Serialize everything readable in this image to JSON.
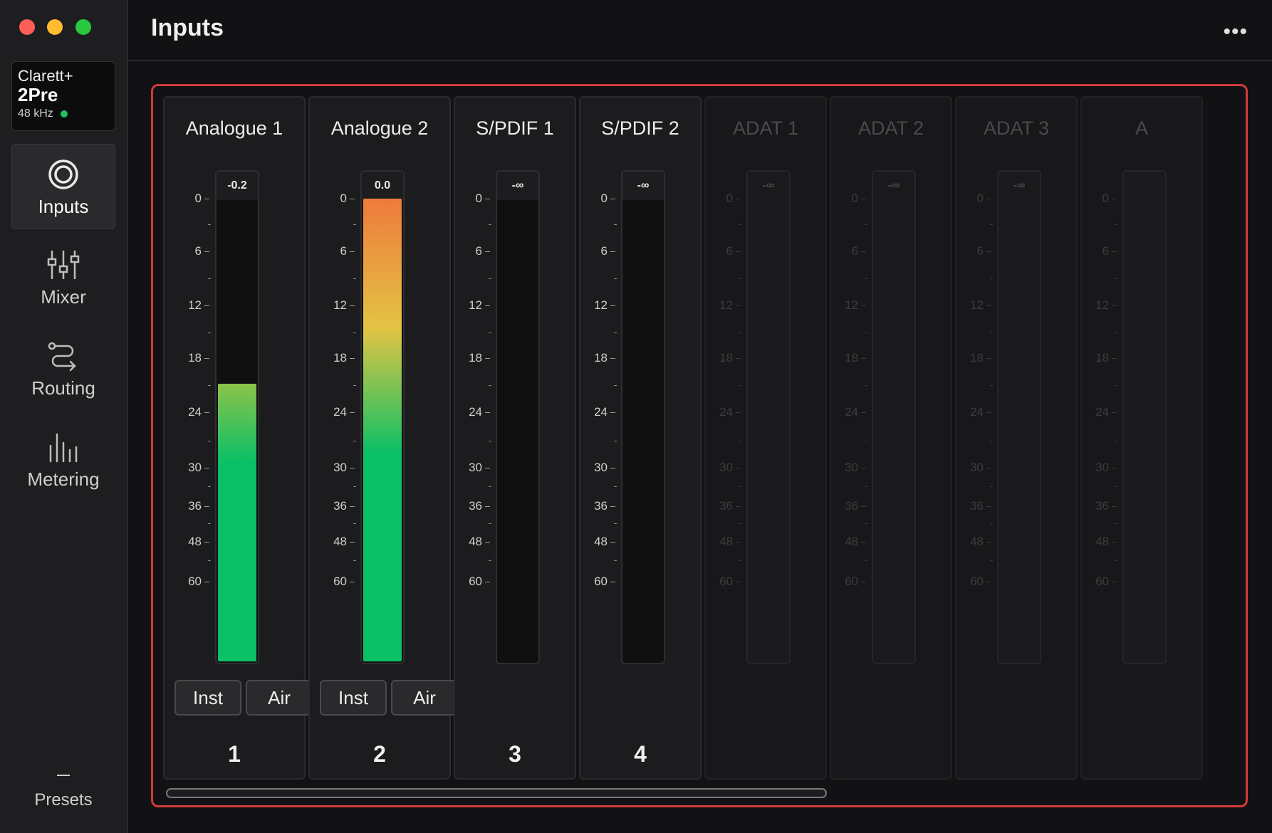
{
  "app": {
    "page_title": "Inputs",
    "more_label": "•••"
  },
  "device": {
    "line1": "Clarett+",
    "line2": "2Pre",
    "sample_rate": "48 kHz",
    "status_color": "#1fc35f"
  },
  "nav": {
    "items": [
      {
        "label": "Inputs",
        "icon": "inputs-icon",
        "active": true
      },
      {
        "label": "Mixer",
        "icon": "mixer-sliders-icon",
        "active": false
      },
      {
        "label": "Routing",
        "icon": "routing-icon",
        "active": false
      },
      {
        "label": "Metering",
        "icon": "metering-bars-icon",
        "active": false
      }
    ],
    "presets_label": "Presets"
  },
  "scale": {
    "labels_big": [
      "0",
      "6",
      "12",
      "18",
      "24",
      "30",
      "36",
      "48",
      "60"
    ]
  },
  "channels": [
    {
      "name": "Analogue 1",
      "peak": "-0.2",
      "level": 0.6,
      "buttons": [
        "Inst",
        "Air"
      ],
      "number": "1",
      "enabled": true
    },
    {
      "name": "Analogue 2",
      "peak": "0.0",
      "level": 1.0,
      "buttons": [
        "Inst",
        "Air"
      ],
      "number": "2",
      "enabled": true
    },
    {
      "name": "S/PDIF 1",
      "peak": "-∞",
      "level": 0,
      "buttons": [],
      "number": "3",
      "enabled": true
    },
    {
      "name": "S/PDIF 2",
      "peak": "-∞",
      "level": 0,
      "buttons": [],
      "number": "4",
      "enabled": true
    },
    {
      "name": "ADAT 1",
      "peak": "-∞",
      "level": 0,
      "buttons": [],
      "number": "",
      "enabled": false
    },
    {
      "name": "ADAT 2",
      "peak": "-∞",
      "level": 0,
      "buttons": [],
      "number": "",
      "enabled": false
    },
    {
      "name": "ADAT 3",
      "peak": "-∞",
      "level": 0,
      "buttons": [],
      "number": "",
      "enabled": false
    },
    {
      "name": "A",
      "peak": "",
      "level": 0,
      "buttons": [],
      "number": "",
      "enabled": false
    }
  ],
  "colors": {
    "accent_outline": "#d23a3a",
    "meter_green": "#0bc066",
    "meter_yellow": "#e3c444",
    "meter_orange": "#ee7a3c"
  }
}
